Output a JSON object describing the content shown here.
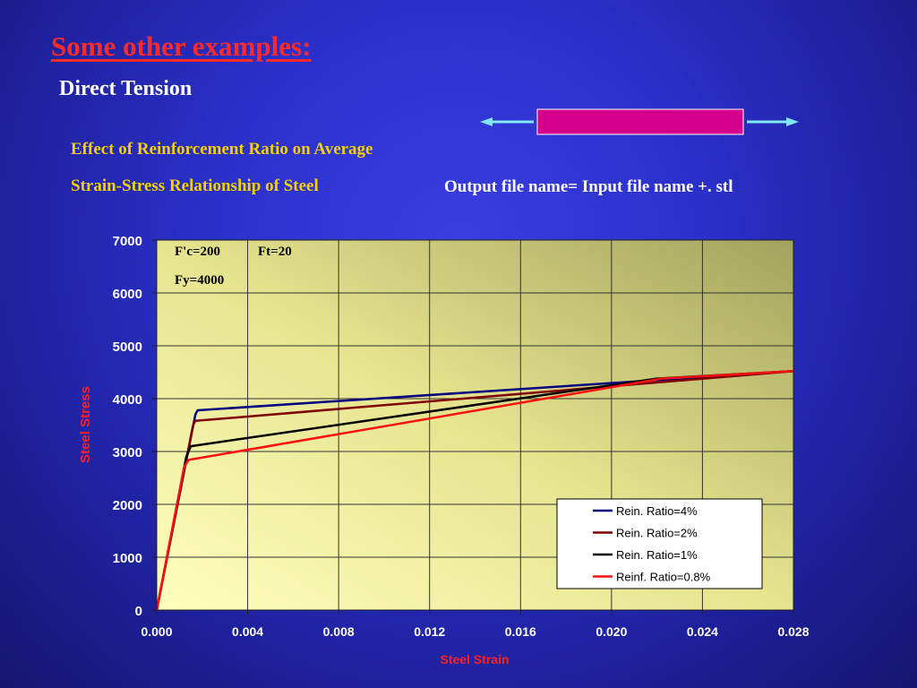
{
  "colors": {
    "title": "#ff2a2a",
    "caption": "#f4d000",
    "axis_title": "#ff2020",
    "specimen": "#d4008c",
    "arrow": "#7fe8f2"
  },
  "slide": {
    "title": "Some other examples:",
    "subtitle": "Direct Tension",
    "caption_line1": "Effect of Reinforcement Ratio on Average",
    "caption_line2": "Strain-Stress Relationship of Steel",
    "output_note": "Output file name= Input file name +. stl"
  },
  "chart_data": {
    "type": "line",
    "xlabel": "Steel Strain",
    "ylabel": "Steel Stress",
    "xlim": [
      0,
      0.028
    ],
    "ylim": [
      0,
      7000
    ],
    "x_ticks": [
      "0.000",
      "0.004",
      "0.008",
      "0.012",
      "0.016",
      "0.020",
      "0.024",
      "0.028"
    ],
    "y_ticks": [
      "0",
      "1000",
      "2000",
      "3000",
      "4000",
      "5000",
      "6000",
      "7000"
    ],
    "grid": true,
    "legend_position": "bottom-right",
    "annotations": [
      "F'c=200",
      "Ft=20",
      "Fy=4000"
    ],
    "series": [
      {
        "name": "Rein. Ratio=4%",
        "color": "#000080",
        "x": [
          0,
          0.0017,
          0.0018,
          0.028
        ],
        "y": [
          0,
          3700,
          3780,
          4520
        ]
      },
      {
        "name": "Rein. Ratio=2%",
        "color": "#800000",
        "x": [
          0,
          0.0016,
          0.0017,
          0.028
        ],
        "y": [
          0,
          3500,
          3580,
          4520
        ]
      },
      {
        "name": "Rein. Ratio=1%",
        "color": "#000000",
        "x": [
          0,
          0.0013,
          0.0015,
          0.022,
          0.028
        ],
        "y": [
          0,
          2900,
          3100,
          4380,
          4520
        ]
      },
      {
        "name": "Reinf. Ratio=0.8%",
        "color": "#ff1010",
        "x": [
          0,
          0.0012,
          0.0014,
          0.0222,
          0.028
        ],
        "y": [
          0,
          2700,
          2840,
          4380,
          4520
        ]
      }
    ]
  }
}
